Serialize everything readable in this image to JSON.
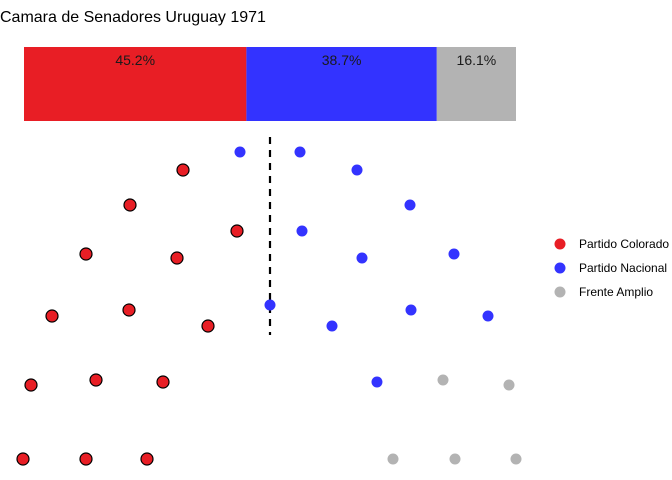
{
  "chart_data": {
    "type": "parliament",
    "title": "Camara de Senadores Uruguay 1971",
    "parties": [
      {
        "name": "Partido Colorado",
        "share_label": "45.2%",
        "share": 45.2,
        "seats": 14,
        "color": "#E81E25"
      },
      {
        "name": "Partido Nacional",
        "share_label": "38.7%",
        "share": 38.7,
        "seats": 12,
        "color": "#3333FF"
      },
      {
        "name": "Frente Amplio",
        "share_label": "16.1%",
        "share": 16.1,
        "seats": 5,
        "color": "#B3B3B3"
      }
    ],
    "majority_line": "dashed",
    "legend_position": "right",
    "grid": false
  }
}
